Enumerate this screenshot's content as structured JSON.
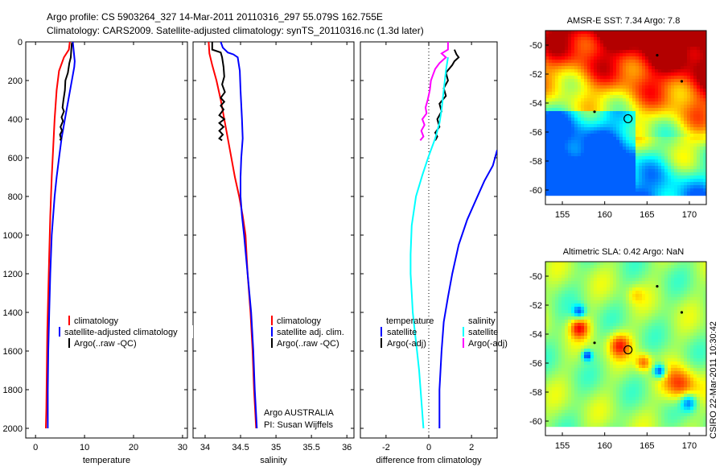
{
  "header": {
    "line1": "Argo profile: CS 5903264_327 14-Mar-2011 20110316_297 55.079S 162.755E",
    "line2": "Climatology: CARS2009. Satellite-adjusted climatology: synTS_20110316.nc (1.3d later)"
  },
  "colors": {
    "climatology": "#ff0000",
    "satellite": "#0000ff",
    "argo": "#000000",
    "temp_diff_argo": "#000000",
    "sal_satellite": "#00ffff",
    "sal_argo": "#ff00ff"
  },
  "chart_data": [
    {
      "id": "temperature",
      "type": "line",
      "xlabel": "temperature",
      "ylabel": "",
      "xlim": [
        -2,
        31
      ],
      "ylim": [
        2000,
        0
      ],
      "x_ticks": [
        0,
        10,
        20,
        30
      ],
      "y_ticks": [
        0,
        200,
        400,
        600,
        800,
        1000,
        1200,
        1400,
        1600,
        1800,
        2000
      ],
      "legend": [
        "climatology",
        "satellite-adjusted climatology",
        "Argo(..raw -QC)"
      ],
      "series": [
        {
          "name": "climatology",
          "color": "red",
          "points": [
            [
              7.0,
              0
            ],
            [
              6.8,
              40
            ],
            [
              5.8,
              80
            ],
            [
              4.8,
              150
            ],
            [
              4.3,
              250
            ],
            [
              3.9,
              400
            ],
            [
              3.6,
              550
            ],
            [
              3.3,
              700
            ],
            [
              3.0,
              900
            ],
            [
              2.8,
              1100
            ],
            [
              2.6,
              1300
            ],
            [
              2.4,
              1500
            ],
            [
              2.3,
              1700
            ],
            [
              2.2,
              1900
            ],
            [
              2.1,
              2000
            ]
          ]
        },
        {
          "name": "satellite-adjusted climatology",
          "color": "blue",
          "points": [
            [
              7.6,
              0
            ],
            [
              7.8,
              50
            ],
            [
              8.0,
              100
            ],
            [
              7.9,
              130
            ],
            [
              7.4,
              200
            ],
            [
              6.7,
              300
            ],
            [
              6.0,
              400
            ],
            [
              5.3,
              500
            ],
            [
              4.8,
              600
            ],
            [
              4.3,
              700
            ],
            [
              3.9,
              800
            ],
            [
              3.6,
              900
            ],
            [
              3.3,
              1000
            ],
            [
              3.0,
              1200
            ],
            [
              2.8,
              1400
            ],
            [
              2.6,
              1600
            ],
            [
              2.5,
              1800
            ],
            [
              2.5,
              2000
            ]
          ]
        },
        {
          "name": "Argo(..raw -QC)",
          "color": "black",
          "points": [
            [
              7.4,
              5
            ],
            [
              7.3,
              40
            ],
            [
              7.2,
              80
            ],
            [
              6.9,
              110
            ],
            [
              6.6,
              160
            ],
            [
              6.1,
              200
            ],
            [
              6.0,
              250
            ],
            [
              5.7,
              300
            ],
            [
              5.5,
              340
            ],
            [
              5.8,
              360
            ],
            [
              5.3,
              390
            ],
            [
              5.6,
              410
            ],
            [
              5.1,
              440
            ],
            [
              5.4,
              460
            ],
            [
              5.0,
              480
            ],
            [
              5.2,
              500
            ],
            [
              5.0,
              510
            ]
          ]
        }
      ]
    },
    {
      "id": "salinity",
      "type": "line",
      "xlabel": "salinity",
      "ylabel": "",
      "xlim": [
        33.83,
        36.1
      ],
      "ylim": [
        2000,
        0
      ],
      "x_ticks": [
        34,
        34.5,
        35,
        35.5,
        36
      ],
      "legend": [
        "climatology",
        "satellite adj. clim.",
        "Argo(..raw -QC)"
      ],
      "annotation": [
        "Argo AUSTRALIA",
        "PI: Susan Wijffels"
      ],
      "series": [
        {
          "name": "climatology",
          "color": "red",
          "points": [
            [
              34.05,
              0
            ],
            [
              34.06,
              60
            ],
            [
              34.1,
              120
            ],
            [
              34.16,
              200
            ],
            [
              34.22,
              300
            ],
            [
              34.27,
              400
            ],
            [
              34.32,
              500
            ],
            [
              34.37,
              600
            ],
            [
              34.42,
              700
            ],
            [
              34.48,
              800
            ],
            [
              34.53,
              900
            ],
            [
              34.57,
              1000
            ],
            [
              34.6,
              1200
            ],
            [
              34.64,
              1400
            ],
            [
              34.67,
              1600
            ],
            [
              34.69,
              1800
            ],
            [
              34.72,
              2000
            ]
          ]
        },
        {
          "name": "satellite adj. clim.",
          "color": "blue",
          "points": [
            [
              34.22,
              0
            ],
            [
              34.25,
              30
            ],
            [
              34.32,
              55
            ],
            [
              34.4,
              65
            ],
            [
              34.46,
              80
            ],
            [
              34.49,
              150
            ],
            [
              34.5,
              250
            ],
            [
              34.52,
              400
            ],
            [
              34.53,
              500
            ],
            [
              34.51,
              600
            ],
            [
              34.5,
              700
            ],
            [
              34.5,
              800
            ],
            [
              34.52,
              900
            ],
            [
              34.55,
              1000
            ],
            [
              34.6,
              1200
            ],
            [
              34.65,
              1400
            ],
            [
              34.68,
              1600
            ],
            [
              34.7,
              1800
            ],
            [
              34.73,
              2000
            ]
          ]
        },
        {
          "name": "Argo(..raw -QC)",
          "color": "black",
          "points": [
            [
              34.1,
              0
            ],
            [
              34.1,
              40
            ],
            [
              34.22,
              55
            ],
            [
              34.24,
              80
            ],
            [
              34.26,
              130
            ],
            [
              34.27,
              180
            ],
            [
              34.24,
              220
            ],
            [
              34.28,
              260
            ],
            [
              34.22,
              290
            ],
            [
              34.27,
              310
            ],
            [
              34.22,
              330
            ],
            [
              34.26,
              350
            ],
            [
              34.2,
              380
            ],
            [
              34.27,
              400
            ],
            [
              34.2,
              420
            ],
            [
              34.26,
              440
            ],
            [
              34.2,
              460
            ],
            [
              34.25,
              480
            ],
            [
              34.2,
              500
            ],
            [
              34.24,
              510
            ]
          ]
        }
      ]
    },
    {
      "id": "difference",
      "type": "line",
      "xlabel": "difference from climatology",
      "ylabel": "",
      "xlim": [
        -3.2,
        3.2
      ],
      "ylim": [
        2000,
        0
      ],
      "x_ticks": [
        -2,
        0,
        2
      ],
      "legend_left_title": "temperature",
      "legend_right_title": "salinity",
      "legend_left": [
        "satellite",
        "Argo(-adj)"
      ],
      "legend_right": [
        "satellite",
        "Argo(-adj)"
      ],
      "series": [
        {
          "name": "temperature satellite",
          "color": "blue",
          "points": [
            [
              3.2,
              560
            ],
            [
              3.0,
              640
            ],
            [
              2.6,
              720
            ],
            [
              2.2,
              820
            ],
            [
              1.8,
              920
            ],
            [
              1.4,
              1050
            ],
            [
              1.1,
              1200
            ],
            [
              0.9,
              1320
            ],
            [
              0.7,
              1450
            ],
            [
              0.6,
              1600
            ],
            [
              0.55,
              1700
            ],
            [
              0.5,
              1800
            ],
            [
              0.5,
              1900
            ],
            [
              0.5,
              2000
            ]
          ]
        },
        {
          "name": "temperature Argo(-adj)",
          "color": "black",
          "points": [
            [
              1.2,
              40
            ],
            [
              1.3,
              65
            ],
            [
              1.4,
              80
            ],
            [
              1.2,
              100
            ],
            [
              1.1,
              120
            ],
            [
              0.8,
              160
            ],
            [
              0.9,
              200
            ],
            [
              0.7,
              240
            ],
            [
              0.8,
              280
            ],
            [
              0.5,
              320
            ],
            [
              0.6,
              360
            ],
            [
              0.4,
              400
            ],
            [
              0.5,
              440
            ],
            [
              0.3,
              470
            ],
            [
              0.4,
              490
            ],
            [
              0.3,
              510
            ]
          ]
        },
        {
          "name": "salinity satellite",
          "color": "cyan",
          "points": [
            [
              0.9,
              80
            ],
            [
              0.8,
              150
            ],
            [
              0.7,
              250
            ],
            [
              0.6,
              350
            ],
            [
              0.5,
              420
            ],
            [
              0.3,
              500
            ],
            [
              0.0,
              590
            ],
            [
              -0.3,
              690
            ],
            [
              -0.6,
              800
            ],
            [
              -0.8,
              950
            ],
            [
              -0.85,
              1100
            ],
            [
              -0.85,
              1200
            ],
            [
              -0.8,
              1300
            ],
            [
              -0.75,
              1400
            ],
            [
              -0.65,
              1500
            ],
            [
              -0.55,
              1600
            ],
            [
              -0.45,
              1700
            ],
            [
              -0.35,
              1850
            ],
            [
              -0.25,
              2000
            ]
          ]
        },
        {
          "name": "salinity Argo(-adj)",
          "color": "magenta",
          "points": [
            [
              0.9,
              0
            ],
            [
              0.9,
              40
            ],
            [
              0.6,
              60
            ],
            [
              0.8,
              80
            ],
            [
              0.5,
              110
            ],
            [
              0.3,
              140
            ],
            [
              0.2,
              170
            ],
            [
              0.1,
              200
            ],
            [
              0.05,
              250
            ],
            [
              -0.05,
              300
            ],
            [
              -0.15,
              340
            ],
            [
              -0.1,
              370
            ],
            [
              -0.3,
              400
            ],
            [
              -0.2,
              430
            ],
            [
              -0.35,
              460
            ],
            [
              -0.25,
              490
            ],
            [
              -0.4,
              510
            ]
          ]
        }
      ]
    },
    {
      "id": "map-sst",
      "type": "heatmap",
      "title": "AMSR-E SST: 7.34  Argo: 7.8",
      "xlim": [
        153,
        172
      ],
      "ylim": [
        -61,
        -49
      ],
      "x_ticks": [
        155,
        160,
        165,
        170
      ],
      "y_ticks": [
        -50,
        -52,
        -54,
        -56,
        -58,
        -60
      ],
      "marker": {
        "lon": 162.755,
        "lat": -55.079
      }
    },
    {
      "id": "map-sla",
      "type": "heatmap",
      "title": "Altimetric SLA: 0.42  Argo: NaN",
      "xlim": [
        153,
        172
      ],
      "ylim": [
        -61,
        -49
      ],
      "x_ticks": [
        155,
        160,
        165,
        170
      ],
      "y_ticks": [
        -50,
        -52,
        -54,
        -56,
        -58,
        -60
      ],
      "marker": {
        "lon": 162.755,
        "lat": -55.079
      }
    }
  ],
  "side_label": "CSIRO 22-Mar-2011 10:30:42"
}
